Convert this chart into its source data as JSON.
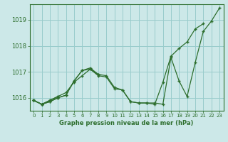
{
  "xlabel": "Graphe pression niveau de la mer (hPa)",
  "bg_color": "#cce8e8",
  "grid_color": "#99cccc",
  "line_color": "#2d6e2d",
  "marker": "+",
  "xlim": [
    -0.5,
    23.5
  ],
  "ylim": [
    1015.5,
    1019.6
  ],
  "yticks": [
    1016,
    1017,
    1018,
    1019
  ],
  "xticks": [
    0,
    1,
    2,
    3,
    4,
    5,
    6,
    7,
    8,
    9,
    10,
    11,
    12,
    13,
    14,
    15,
    16,
    17,
    18,
    19,
    20,
    21,
    22,
    23
  ],
  "series": [
    [
      1015.9,
      1015.75,
      1015.85,
      1016.0,
      1016.1,
      1016.65,
      1017.05,
      1017.1,
      1016.85,
      1016.8,
      1016.35,
      1016.3,
      1015.85,
      1015.8,
      1015.8,
      1015.8,
      1015.75,
      1017.55,
      1016.65,
      1016.05,
      1017.35,
      1018.55,
      1018.95,
      1019.45
    ],
    [
      1015.9,
      1015.75,
      1015.85,
      1016.0,
      1016.1,
      1016.65,
      1017.05,
      1017.15,
      1016.9,
      1016.85,
      1016.4,
      1016.3,
      1015.85,
      1015.8,
      1015.8,
      1015.75,
      1016.6,
      1017.6,
      1017.9,
      1018.15,
      1018.65,
      1018.85,
      null,
      null
    ],
    [
      1015.9,
      1015.75,
      1015.9,
      1016.05,
      1016.2,
      1016.6,
      1016.85,
      1017.1,
      1016.9,
      null,
      null,
      null,
      null,
      null,
      null,
      null,
      null,
      null,
      null,
      null,
      null,
      null,
      null,
      null
    ],
    [
      1015.9,
      1015.75,
      1015.9,
      1016.05,
      null,
      null,
      null,
      null,
      null,
      null,
      null,
      null,
      null,
      null,
      null,
      null,
      null,
      null,
      null,
      null,
      null,
      null,
      null,
      null
    ]
  ]
}
